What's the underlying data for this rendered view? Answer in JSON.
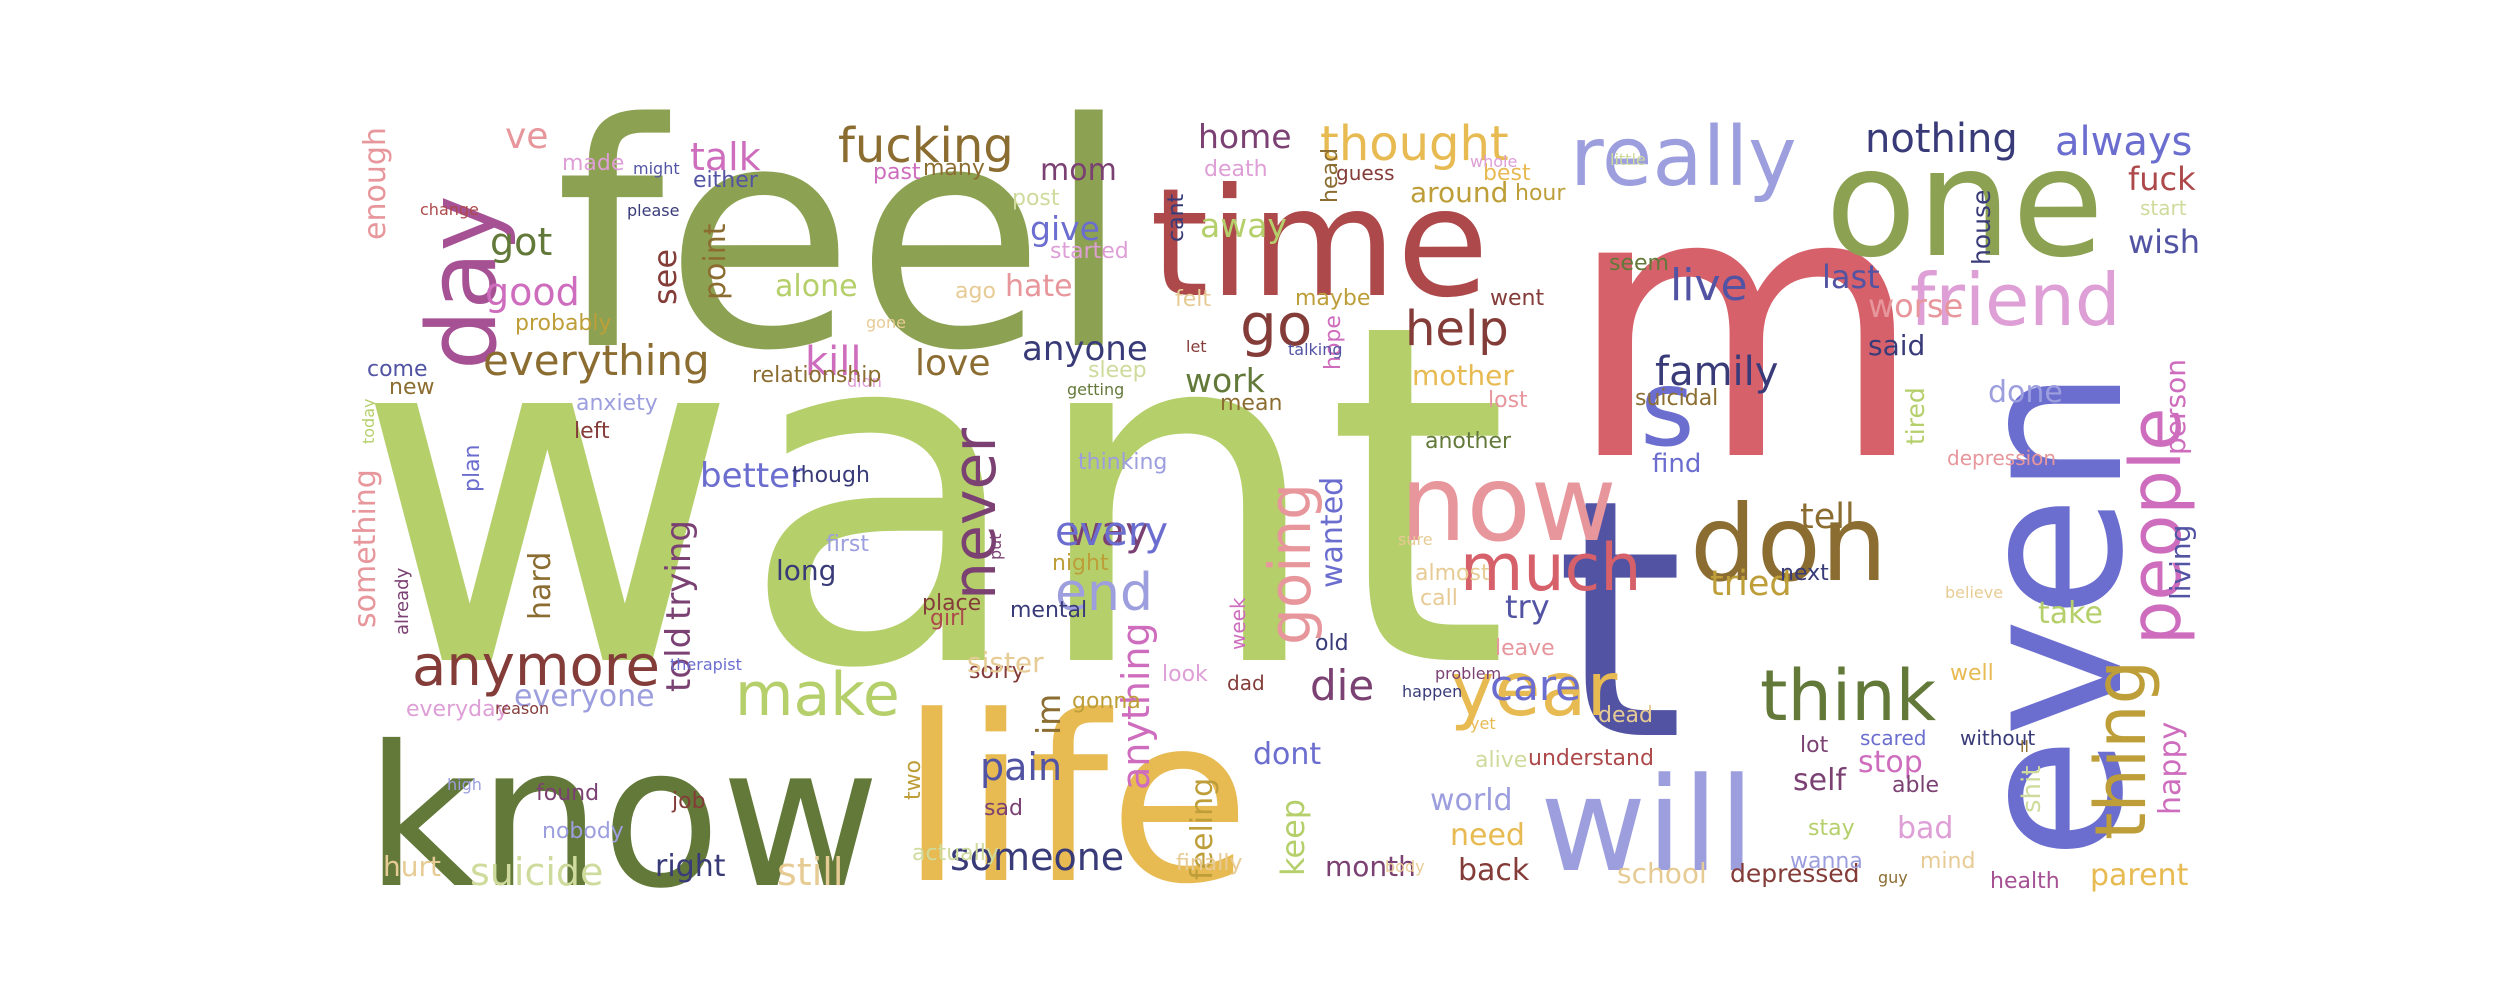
{
  "words": [
    {
      "text": "want",
      "color": "#b5cf6b"
    },
    {
      "text": "feel",
      "color": "#8ca252"
    },
    {
      "text": "m",
      "color": "#d6616b"
    },
    {
      "text": "t",
      "color": "#5254a3"
    },
    {
      "text": "even",
      "color": "#6b6ecf"
    },
    {
      "text": "know",
      "color": "#637939"
    },
    {
      "text": "life",
      "color": "#e7ba52"
    },
    {
      "text": "time",
      "color": "#ad494a"
    },
    {
      "text": "one",
      "color": "#8ca252"
    },
    {
      "text": "will",
      "color": "#9c9ede"
    },
    {
      "text": "now",
      "color": "#e7969c"
    },
    {
      "text": "don",
      "color": "#8c6d31"
    },
    {
      "text": "day",
      "color": "#a55194"
    },
    {
      "text": "really",
      "color": "#9c9ede"
    },
    {
      "text": "s",
      "color": "#6b6ecf"
    },
    {
      "text": "friend",
      "color": "#de9ed6"
    },
    {
      "text": "people",
      "color": "#ce6dbd"
    },
    {
      "text": "thing",
      "color": "#bd9e39"
    },
    {
      "text": "think",
      "color": "#637939"
    },
    {
      "text": "year",
      "color": "#e7ba52"
    },
    {
      "text": "much",
      "color": "#d6616b"
    },
    {
      "text": "make",
      "color": "#b5cf6b"
    },
    {
      "text": "anymore",
      "color": "#843c39"
    },
    {
      "text": "going",
      "color": "#e7969c"
    },
    {
      "text": "never",
      "color": "#7b4173"
    },
    {
      "text": "go",
      "color": "#843c39"
    },
    {
      "text": "help",
      "color": "#843c39"
    },
    {
      "text": "fucking",
      "color": "#8c6d31"
    },
    {
      "text": "thought",
      "color": "#e7ba52"
    },
    {
      "text": "nothing",
      "color": "#393b79"
    },
    {
      "text": "always",
      "color": "#6b6ecf"
    },
    {
      "text": "everything",
      "color": "#8c6d31"
    },
    {
      "text": "live",
      "color": "#5254a3"
    },
    {
      "text": "family",
      "color": "#393b79"
    },
    {
      "text": "end",
      "color": "#9c9ede"
    },
    {
      "text": "way",
      "color": "#7b4173"
    },
    {
      "text": "every",
      "color": "#6b6ecf"
    },
    {
      "text": "care",
      "color": "#6b6ecf"
    },
    {
      "text": "die",
      "color": "#7b4173"
    },
    {
      "text": "pain",
      "color": "#5254a3"
    },
    {
      "text": "suicide",
      "color": "#cedb9c"
    },
    {
      "text": "still",
      "color": "#e7cb94"
    },
    {
      "text": "someone",
      "color": "#393b79"
    },
    {
      "text": "talk",
      "color": "#ce6dbd"
    },
    {
      "text": "got",
      "color": "#637939"
    },
    {
      "text": "good",
      "color": "#ce6dbd"
    },
    {
      "text": "ve",
      "color": "#e7969c"
    },
    {
      "text": "home",
      "color": "#7b4173"
    },
    {
      "text": "away",
      "color": "#b5cf6b"
    },
    {
      "text": "give",
      "color": "#6b6ecf"
    },
    {
      "text": "mom",
      "color": "#7b4173"
    },
    {
      "text": "hate",
      "color": "#e7969c"
    },
    {
      "text": "alone",
      "color": "#b5cf6b"
    },
    {
      "text": "kill",
      "color": "#ce6dbd"
    },
    {
      "text": "love",
      "color": "#8c6d31"
    },
    {
      "text": "anyone",
      "color": "#393b79"
    },
    {
      "text": "work",
      "color": "#637939"
    },
    {
      "text": "better",
      "color": "#6b6ecf"
    },
    {
      "text": "trying",
      "color": "#7b4173"
    },
    {
      "text": "told",
      "color": "#7b4173"
    },
    {
      "text": "long",
      "color": "#393b79"
    },
    {
      "text": "everyone",
      "color": "#9c9ede"
    },
    {
      "text": "hard",
      "color": "#8c6d31"
    },
    {
      "text": "something",
      "color": "#e7969c"
    },
    {
      "text": "enough",
      "color": "#e7969c"
    },
    {
      "text": "see",
      "color": "#843c39"
    },
    {
      "text": "point",
      "color": "#8c6d31"
    },
    {
      "text": "tell",
      "color": "#8c6d31"
    },
    {
      "text": "tried",
      "color": "#bd9e39"
    },
    {
      "text": "try",
      "color": "#5254a3"
    },
    {
      "text": "wanted",
      "color": "#6b6ecf"
    },
    {
      "text": "mother",
      "color": "#e7ba52"
    },
    {
      "text": "fuck",
      "color": "#ad494a"
    },
    {
      "text": "wish",
      "color": "#5254a3"
    },
    {
      "text": "last",
      "color": "#5254a3"
    },
    {
      "text": "worse",
      "color": "#e7969c"
    },
    {
      "text": "said",
      "color": "#393b79"
    },
    {
      "text": "done",
      "color": "#9c9ede"
    },
    {
      "text": "person",
      "color": "#ce6dbd"
    },
    {
      "text": "living",
      "color": "#5254a3"
    },
    {
      "text": "happy",
      "color": "#ce6dbd"
    },
    {
      "text": "parent",
      "color": "#e7ba52"
    },
    {
      "text": "take",
      "color": "#b5cf6b"
    },
    {
      "text": "stop",
      "color": "#ce6dbd"
    },
    {
      "text": "self",
      "color": "#7b4173"
    },
    {
      "text": "bad",
      "color": "#de9ed6"
    },
    {
      "text": "keep",
      "color": "#b5cf6b"
    },
    {
      "text": "feeling",
      "color": "#bd9e39"
    },
    {
      "text": "anything",
      "color": "#ce6dbd"
    },
    {
      "text": "im",
      "color": "#8c6d31"
    },
    {
      "text": "dont",
      "color": "#6b6ecf"
    },
    {
      "text": "world",
      "color": "#9c9ede"
    },
    {
      "text": "need",
      "color": "#e7ba52"
    },
    {
      "text": "back",
      "color": "#843c39"
    },
    {
      "text": "month",
      "color": "#7b4173"
    },
    {
      "text": "right",
      "color": "#393b79"
    },
    {
      "text": "hurt",
      "color": "#e7cb94"
    },
    {
      "text": "school",
      "color": "#e7cb94"
    },
    {
      "text": "depressed",
      "color": "#843c39"
    },
    {
      "text": "health",
      "color": "#a55194"
    },
    {
      "text": "around",
      "color": "#bd9e39"
    },
    {
      "text": "find",
      "color": "#6b6ecf"
    },
    {
      "text": "shit",
      "color": "#cedb9c"
    },
    {
      "text": "lot",
      "color": "#7b4173"
    },
    {
      "text": "understand",
      "color": "#ad494a"
    },
    {
      "text": "wanna",
      "color": "#9c9ede"
    },
    {
      "text": "scared",
      "color": "#6b6ecf"
    },
    {
      "text": "without",
      "color": "#393b79"
    },
    {
      "text": "able",
      "color": "#7b4173"
    },
    {
      "text": "well",
      "color": "#e7ba52"
    },
    {
      "text": "stay",
      "color": "#b5cf6b"
    },
    {
      "text": "tired",
      "color": "#b5cf6b"
    },
    {
      "text": "house",
      "color": "#393b79"
    },
    {
      "text": "hour",
      "color": "#bd9e39"
    },
    {
      "text": "seem",
      "color": "#637939"
    },
    {
      "text": "suicidal",
      "color": "#8c6d31"
    },
    {
      "text": "another",
      "color": "#637939"
    },
    {
      "text": "depression",
      "color": "#e7969c"
    },
    {
      "text": "next",
      "color": "#393b79"
    },
    {
      "text": "leave",
      "color": "#e7969c"
    },
    {
      "text": "dead",
      "color": "#e7cb94"
    },
    {
      "text": "alive",
      "color": "#cedb9c"
    },
    {
      "text": "almost",
      "color": "#e7cb94"
    },
    {
      "text": "call",
      "color": "#e7cb94"
    },
    {
      "text": "old",
      "color": "#393b79"
    },
    {
      "text": "lost",
      "color": "#e7969c"
    },
    {
      "text": "went",
      "color": "#843c39"
    },
    {
      "text": "maybe",
      "color": "#bd9e39"
    },
    {
      "text": "felt",
      "color": "#e7cb94"
    },
    {
      "text": "cant",
      "color": "#393b79"
    },
    {
      "text": "head",
      "color": "#8c6d31"
    },
    {
      "text": "guess",
      "color": "#843c39"
    },
    {
      "text": "death",
      "color": "#de9ed6"
    },
    {
      "text": "best",
      "color": "#e7ba52"
    },
    {
      "text": "little",
      "color": "#cedb9c"
    },
    {
      "text": "start",
      "color": "#cedb9c"
    },
    {
      "text": "hope",
      "color": "#ce6dbd"
    },
    {
      "text": "let",
      "color": "#843c39"
    },
    {
      "text": "mean",
      "color": "#8c6d31"
    },
    {
      "text": "sleep",
      "color": "#cedb9c"
    },
    {
      "text": "getting",
      "color": "#637939"
    },
    {
      "text": "didn",
      "color": "#de9ed6"
    },
    {
      "text": "relationship",
      "color": "#8c6d31"
    },
    {
      "text": "ago",
      "color": "#e7cb94"
    },
    {
      "text": "post",
      "color": "#cedb9c"
    },
    {
      "text": "started",
      "color": "#de9ed6"
    },
    {
      "text": "gone",
      "color": "#e7cb94"
    },
    {
      "text": "past",
      "color": "#ce6dbd"
    },
    {
      "text": "many",
      "color": "#8c6d31"
    },
    {
      "text": "either",
      "color": "#5254a3"
    },
    {
      "text": "made",
      "color": "#de9ed6"
    },
    {
      "text": "might",
      "color": "#5254a3"
    },
    {
      "text": "change",
      "color": "#ad494a"
    },
    {
      "text": "please",
      "color": "#393b79"
    },
    {
      "text": "probably",
      "color": "#bd9e39"
    },
    {
      "text": "come",
      "color": "#5254a3"
    },
    {
      "text": "new",
      "color": "#8c6d31"
    },
    {
      "text": "today",
      "color": "#b5cf6b"
    },
    {
      "text": "anxiety",
      "color": "#9c9ede"
    },
    {
      "text": "left",
      "color": "#843c39"
    },
    {
      "text": "plan",
      "color": "#6b6ecf"
    },
    {
      "text": "already",
      "color": "#7b4173"
    },
    {
      "text": "everyday",
      "color": "#de9ed6"
    },
    {
      "text": "reason",
      "color": "#843c39"
    },
    {
      "text": "therapist",
      "color": "#6b6ecf"
    },
    {
      "text": "high",
      "color": "#9c9ede"
    },
    {
      "text": "found",
      "color": "#7b4173"
    },
    {
      "text": "nobody",
      "color": "#9c9ede"
    },
    {
      "text": "job",
      "color": "#843c39"
    },
    {
      "text": "two",
      "color": "#bd9e39"
    },
    {
      "text": "sad",
      "color": "#7b4173"
    },
    {
      "text": "actually",
      "color": "#cedb9c"
    },
    {
      "text": "finally",
      "color": "#e7cb94"
    },
    {
      "text": "though",
      "color": "#393b79"
    },
    {
      "text": "put",
      "color": "#7b4173"
    },
    {
      "text": "first",
      "color": "#9c9ede"
    },
    {
      "text": "thinking",
      "color": "#9c9ede"
    },
    {
      "text": "night",
      "color": "#bd9e39"
    },
    {
      "text": "mental",
      "color": "#393b79"
    },
    {
      "text": "place",
      "color": "#843c39"
    },
    {
      "text": "girl",
      "color": "#ad494a"
    },
    {
      "text": "sorry",
      "color": "#843c39"
    },
    {
      "text": "gonna",
      "color": "#bd9e39"
    },
    {
      "text": "look",
      "color": "#de9ed6"
    },
    {
      "text": "dad",
      "color": "#843c39"
    },
    {
      "text": "week",
      "color": "#ce6dbd"
    },
    {
      "text": "sure",
      "color": "#e7cb94"
    },
    {
      "text": "problem",
      "color": "#7b4173"
    },
    {
      "text": "happen",
      "color": "#393b79"
    },
    {
      "text": "yet",
      "color": "#e7ba52"
    },
    {
      "text": "body",
      "color": "#e7cb94"
    },
    {
      "text": "mind",
      "color": "#e7cb94"
    },
    {
      "text": "guy",
      "color": "#8c6d31"
    },
    {
      "text": "ll",
      "color": "#8c6d31"
    },
    {
      "text": "believe",
      "color": "#e7cb94"
    },
    {
      "text": "whole",
      "color": "#de9ed6"
    },
    {
      "text": "talking",
      "color": "#5254a3"
    },
    {
      "text": "sister",
      "color": "#e7cb94"
    },
    {
      "text": "d",
      "color": "#7b4173"
    },
    {
      "text": "say",
      "color": "#b5cf6b"
    }
  ]
}
